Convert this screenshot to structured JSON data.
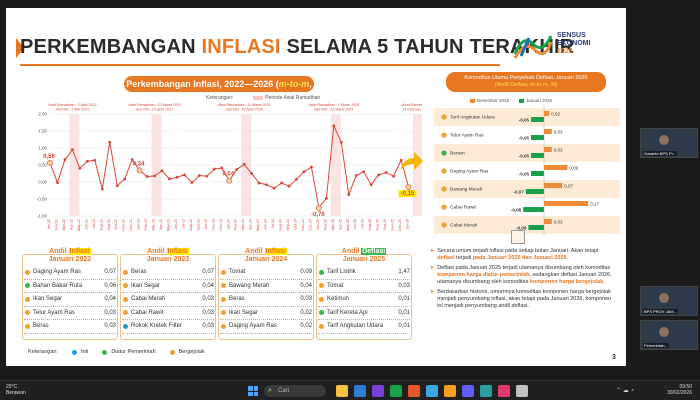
{
  "slide": {
    "title_pre": "PERKEMBANGAN ",
    "title_hl": "INFLASI",
    "title_post": " SELAMA 5 TAHUN TERAKHIR",
    "logo_text": [
      "SENSUS",
      "EKONOMI",
      "2026"
    ],
    "subtitle_pre": "Perkembangan Inflasi, 2022—2026 (",
    "subtitle_em": "m-to-m",
    "subtitle_post": ", %)",
    "legend_label": "Keterangan:",
    "legend_item": "Periode Awal Ramadhan",
    "page_number": "3"
  },
  "chart_data": [
    {
      "type": "line",
      "title": "Perkembangan Inflasi, 2022—2026 (m-to-m, %)",
      "ylim": [
        -1.0,
        2.0
      ],
      "yticks": [
        "2,00",
        "1,50",
        "1,00",
        "0,50",
        "0,00",
        "-0,50",
        "-1,00"
      ],
      "categories": [
        "Jan-22",
        "Feb-22",
        "Mar-22",
        "Apr-22",
        "May-22",
        "Jun-22",
        "Jul-22",
        "Aug-22",
        "Sep-22",
        "Oct-22",
        "Nov-22",
        "Dec-22",
        "Jan-23",
        "Feb-23",
        "Mar-23",
        "Apr-23",
        "May-23",
        "Jun-23",
        "Jul-23",
        "Aug-23",
        "Sep-23",
        "Oct-23",
        "Nov-23",
        "Dec-23",
        "Jan-24",
        "Feb-24",
        "Mar-24",
        "Apr-24",
        "May-24",
        "Jun-24",
        "Jul-24",
        "Aug-24",
        "Sep-24",
        "Oct-24",
        "Nov-24",
        "Dec-24",
        "Jan-25",
        "Feb-25",
        "Mar-25",
        "Apr-25",
        "May-25",
        "Jun-25",
        "Jul-25",
        "Aug-25",
        "Sep-25",
        "Oct-25",
        "Nov-25",
        "Dec-25",
        "Jan-26"
      ],
      "values": [
        0.56,
        -0.02,
        0.66,
        0.95,
        0.4,
        0.61,
        0.64,
        -0.21,
        1.17,
        -0.11,
        0.09,
        0.66,
        0.34,
        0.16,
        0.18,
        0.33,
        0.09,
        0.14,
        0.21,
        -0.02,
        0.19,
        0.17,
        0.38,
        0.41,
        0.04,
        0.37,
        0.52,
        0.25,
        -0.03,
        -0.08,
        -0.18,
        -0.03,
        -0.12,
        0.08,
        0.3,
        0.44,
        -0.76,
        -0.48,
        1.65,
        1.17,
        -0.37,
        0.19,
        0.3,
        -0.08,
        0.21,
        0.28,
        0.17,
        0.64,
        -0.15
      ],
      "data_labels": [
        {
          "index": 0,
          "text": "0,56"
        },
        {
          "index": 12,
          "text": "0,34"
        },
        {
          "index": 24,
          "text": "0,04"
        },
        {
          "index": 36,
          "text": "-0,76"
        },
        {
          "index": 48,
          "text": "-0,15"
        }
      ],
      "ramadhan_annotations": [
        {
          "index": 3,
          "line1": "Awal Ramadhan : 3 April 2022",
          "line2": "Idul Fitri : 2 Mei 2022"
        },
        {
          "index": 14,
          "line1": "Awal Ramadhan : 23 Maret 2023",
          "line2": "Idul Fitri : 22 April 2023"
        },
        {
          "index": 26,
          "line1": "Awal Ramadhan : 12 Maret 2024",
          "line2": "Idul Fitri : 10 April 2024"
        },
        {
          "index": 38,
          "line1": "Awal Ramadhan : 1 Maret 2025",
          "line2": "Idul Fitri : 31 Maret 2025"
        },
        {
          "index": 49,
          "line1": "Awal Ramadhan :",
          "line2": "19 Februari 2026"
        }
      ],
      "highlight_points": [
        0,
        12,
        24,
        36,
        48
      ],
      "line_color": "#d9463a",
      "highlight_color": "#f6d49a"
    },
    {
      "type": "bar",
      "title": "Komoditas Utama Penyebab Deflasi, Januari 2026 (Andil Deflasi, m-to-m, %)",
      "categories": [
        "Tarif Angkutan Udara",
        "Telur Ayam Ras",
        "Bensin",
        "Daging Ayam Ras",
        "Bawang Merah",
        "Cabai Rawit",
        "Cabai Merah"
      ],
      "series": [
        {
          "name": "Desember 2025",
          "color": "#f08a34",
          "values": [
            0.02,
            0.03,
            0.03,
            0.09,
            0.07,
            0.17,
            0.03
          ]
        },
        {
          "name": "Januari 2026",
          "color": "#18a14a",
          "values": [
            -0.05,
            -0.05,
            -0.05,
            -0.05,
            -0.07,
            -0.08,
            -0.06
          ]
        }
      ],
      "labels_dec": [
        "0,02",
        "0,03",
        "0,03",
        "0,09",
        "0,07",
        "0,17",
        "0,03"
      ],
      "labels_jan": [
        "-0,05",
        "-0,05",
        "-0,05",
        "-0,05",
        "-0,07",
        "-0,08",
        "-0,06"
      ],
      "dot_colors": [
        "#f0a030",
        "#f0a030",
        "#3ab54a",
        "#f0a030",
        "#f0a030",
        "#f0a030",
        "#f0a030"
      ]
    }
  ],
  "andil": [
    {
      "pre": "Andil ",
      "hl": "Inflasi",
      "year": "Januari 2022",
      "kind": "inflasi",
      "rows": [
        {
          "name": "Daging Ayam Ras",
          "val": "0,07",
          "color": "#f0a030"
        },
        {
          "name": "Bahan Bakar Ruta",
          "val": "0,06",
          "color": "#3ab54a"
        },
        {
          "name": "Ikan Segar",
          "val": "0,04",
          "color": "#f0a030"
        },
        {
          "name": "Telur Ayam Ras",
          "val": "0,03",
          "color": "#f0a030"
        },
        {
          "name": "Beras",
          "val": "0,03",
          "color": "#f0a030"
        }
      ]
    },
    {
      "pre": "Andil ",
      "hl": "Inflasi",
      "year": "Januari 2023",
      "kind": "inflasi",
      "rows": [
        {
          "name": "Beras",
          "val": "0,07",
          "color": "#f0a030"
        },
        {
          "name": "Ikan Segar",
          "val": "0,04",
          "color": "#f0a030"
        },
        {
          "name": "Cabai Merah",
          "val": "0,03",
          "color": "#f0a030"
        },
        {
          "name": "Cabai Rawit",
          "val": "0,03",
          "color": "#f0a030"
        },
        {
          "name": "Rokok Kretek Filter",
          "val": "0,03",
          "color": "#1f9bd7"
        }
      ]
    },
    {
      "pre": "Andil ",
      "hl": "Inflasi",
      "year": "Januari 2024",
      "kind": "inflasi",
      "rows": [
        {
          "name": "Tomat",
          "val": "0,09",
          "color": "#f0a030"
        },
        {
          "name": "Bawang Merah",
          "val": "0,04",
          "color": "#f0a030"
        },
        {
          "name": "Beras",
          "val": "0,03",
          "color": "#f0a030"
        },
        {
          "name": "Ikan Segar",
          "val": "0,02",
          "color": "#f0a030"
        },
        {
          "name": "Daging Ayam Ras",
          "val": "0,02",
          "color": "#f0a030"
        }
      ]
    },
    {
      "pre": "Andil ",
      "hl": "Deflasi",
      "year": "Januari 2025",
      "kind": "deflasi",
      "rows": [
        {
          "name": "Tarif Listrik",
          "val": "1,47",
          "color": "#3ab54a"
        },
        {
          "name": "Tomat",
          "val": "0,03",
          "color": "#f0a030"
        },
        {
          "name": "Ketimun",
          "val": "0,01",
          "color": "#f0a030"
        },
        {
          "name": "Tarif Kereta Api",
          "val": "0,01",
          "color": "#3ab54a"
        },
        {
          "name": "Tarif Angkutan Udara",
          "val": "0,01",
          "color": "#f0a030"
        }
      ]
    }
  ],
  "keterangan": {
    "label": "Keterangan:",
    "items": [
      {
        "name": "Inti",
        "color": "#1f9bd7"
      },
      {
        "name": "Diatur Pemerintah",
        "color": "#3ab54a"
      },
      {
        "name": "Bergejolak",
        "color": "#f0a030"
      }
    ]
  },
  "bullets": [
    [
      {
        "t": "Secara umum terjadi inflasi pada setiap bulan Januari. Akan tetapi "
      },
      {
        "t": "deflasi",
        "h": true
      },
      {
        "t": " terjadi "
      },
      {
        "t": "pada Januari 2025 dan Januari 2026.",
        "h": true
      }
    ],
    [
      {
        "t": "Deflasi pada Januari 2025 terjadi utamanya disumbang oleh komoditas "
      },
      {
        "t": "komponen harga diatur pemerintah",
        "h": true
      },
      {
        "t": ", sedangkan deflasi Januari 2026, utamanya disumbang oleh komoditas "
      },
      {
        "t": "komponen harga bergejolak.",
        "h": true
      }
    ],
    [
      {
        "t": "Berdasarkan historis, umumnya komoditas komponen harga bergejolak menjadi penyumbang inflasi, akan tetapi pada Januari 2026, komponen ini menjadi penyumbang andil deflasi."
      }
    ]
  ],
  "tiles": [
    {
      "label": "Susanto BPS Pr..."
    },
    {
      "label": "BPS PROV JAM..."
    },
    {
      "label": "Pemerintah..."
    }
  ],
  "taskbar": {
    "temp": "29°C",
    "weather": "Berawan",
    "search_placeholder": "Cari",
    "time": "09:50",
    "date": "30/02/2026",
    "apps": [
      "#f5c242",
      "#2e7fd9",
      "#7a3fd9",
      "#18a14a",
      "#e8562a",
      "#3ba7e0",
      "#ff9f1a",
      "#5f5fff",
      "#2aa0a0",
      "#e03a6e",
      "#c0c0c0"
    ]
  }
}
